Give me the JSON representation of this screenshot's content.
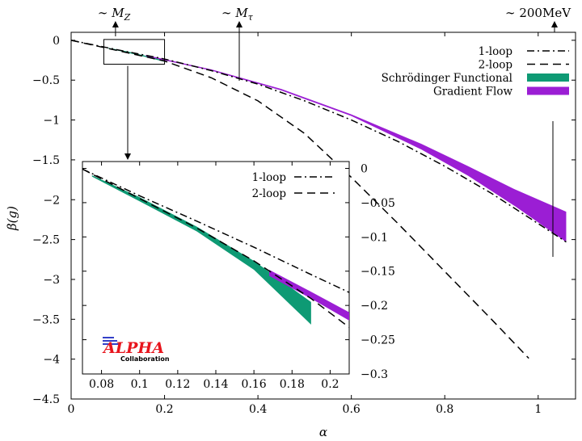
{
  "chart_data": [
    {
      "type": "line",
      "role": "main",
      "xlabel": "α",
      "ylabel": "β(g)",
      "xlim": [
        0,
        1.08
      ],
      "ylim": [
        -4.5,
        0.1
      ],
      "xticks": [
        0,
        0.2,
        0.4,
        0.6,
        0.8,
        1
      ],
      "xtick_labels": [
        "0",
        "0.2",
        "0.4",
        "0.6",
        "0.8",
        "1"
      ],
      "yticks": [
        0,
        -0.5,
        -1,
        -1.5,
        -2,
        -2.5,
        -3,
        -3.5,
        -4,
        -4.5
      ],
      "ytick_labels": [
        "0",
        "−0.5",
        "−1",
        "−1.5",
        "−2",
        "−2.5",
        "−3",
        "−3.5",
        "−4",
        "−4.5"
      ],
      "legend_position": "top-right",
      "series": [
        {
          "name": "1-loop",
          "style": "dash-dot",
          "color": "#000000",
          "x": [
            0,
            0.1,
            0.2,
            0.3,
            0.4,
            0.5,
            0.6,
            0.7,
            0.8,
            0.9,
            1.0,
            1.06
          ],
          "y": [
            0,
            -0.12,
            -0.235,
            -0.38,
            -0.55,
            -0.76,
            -1.0,
            -1.27,
            -1.58,
            -1.92,
            -2.3,
            -2.53
          ]
        },
        {
          "name": "2-loop",
          "style": "dashed",
          "color": "#000000",
          "x": [
            0,
            0.1,
            0.2,
            0.3,
            0.4,
            0.5,
            0.6,
            0.7,
            0.8,
            0.9,
            0.98
          ],
          "y": [
            0,
            -0.13,
            -0.26,
            -0.47,
            -0.76,
            -1.17,
            -1.72,
            -2.3,
            -2.9,
            -3.5,
            -3.99
          ]
        },
        {
          "name": "Schrödinger Functional",
          "type": "band",
          "color": "#0e9a74",
          "x": [
            0.08,
            0.12,
            0.16,
            0.2
          ],
          "y_low": [
            -0.105,
            -0.155,
            -0.21,
            -0.27
          ],
          "y_high": [
            -0.095,
            -0.14,
            -0.195,
            -0.255
          ]
        },
        {
          "name": "Gradient Flow",
          "type": "band",
          "color": "#9b1ed4",
          "x": [
            0.16,
            0.3,
            0.45,
            0.6,
            0.75,
            0.85,
            0.95,
            1.06
          ],
          "y_low": [
            -0.2,
            -0.38,
            -0.63,
            -0.95,
            -1.37,
            -1.7,
            -2.08,
            -2.53
          ],
          "y_high": [
            -0.185,
            -0.365,
            -0.61,
            -0.93,
            -1.3,
            -1.58,
            -1.87,
            -2.15
          ]
        }
      ],
      "annotations": [
        {
          "label_prefix": "∼ ",
          "label_sym": "M",
          "label_sub": "Z",
          "x": 0.095
        },
        {
          "label_prefix": "∼ ",
          "label_sym": "M",
          "label_sub": "τ",
          "x": 0.36
        },
        {
          "label_prefix": "∼ 200MeV",
          "label_sym": "",
          "label_sub": "",
          "x": 1.035
        }
      ],
      "zoom_box": {
        "x": [
          0.07,
          0.2
        ],
        "y": [
          -0.3,
          0.01
        ]
      }
    },
    {
      "type": "line",
      "role": "inset",
      "xlim": [
        0.07,
        0.21
      ],
      "ylim": [
        -0.3,
        0.01
      ],
      "xticks": [
        0.08,
        0.1,
        0.12,
        0.14,
        0.16,
        0.18,
        0.2
      ],
      "xtick_labels": [
        "0.08",
        "0.1",
        "0.12",
        "0.14",
        "0.16",
        "0.18",
        "0.2"
      ],
      "yticks": [
        0,
        -0.05,
        -0.1,
        -0.15,
        -0.2,
        -0.25,
        -0.3
      ],
      "ytick_labels": [
        "0",
        "−0.05",
        "−0.1",
        "−0.15",
        "−0.2",
        "−0.25",
        "−0.3"
      ],
      "legend_position": "top-right",
      "series": [
        {
          "name": "1-loop",
          "style": "dash-dot",
          "color": "#000000",
          "x": [
            0.07,
            0.1,
            0.13,
            0.16,
            0.19,
            0.21
          ],
          "y": [
            -0.001,
            -0.04,
            -0.077,
            -0.115,
            -0.155,
            -0.181
          ]
        },
        {
          "name": "2-loop",
          "style": "dashed",
          "color": "#000000",
          "x": [
            0.07,
            0.1,
            0.13,
            0.16,
            0.19,
            0.21
          ],
          "y": [
            -0.001,
            -0.044,
            -0.087,
            -0.135,
            -0.19,
            -0.232
          ]
        },
        {
          "name": "Schrödinger Functional",
          "type": "band",
          "color": "#0e9a74",
          "x": [
            0.075,
            0.1,
            0.13,
            0.16,
            0.19
          ],
          "y_low": [
            -0.012,
            -0.048,
            -0.092,
            -0.148,
            -0.228
          ],
          "y_high": [
            -0.01,
            -0.042,
            -0.085,
            -0.135,
            -0.195
          ]
        },
        {
          "name": "Gradient Flow",
          "type": "band",
          "color": "#9b1ed4",
          "x": [
            0.168,
            0.19,
            0.21
          ],
          "y_low": [
            -0.157,
            -0.19,
            -0.222
          ],
          "y_high": [
            -0.148,
            -0.18,
            -0.21
          ]
        }
      ]
    }
  ],
  "logo": {
    "main": "ALPHA",
    "sub": "Collaboration"
  }
}
